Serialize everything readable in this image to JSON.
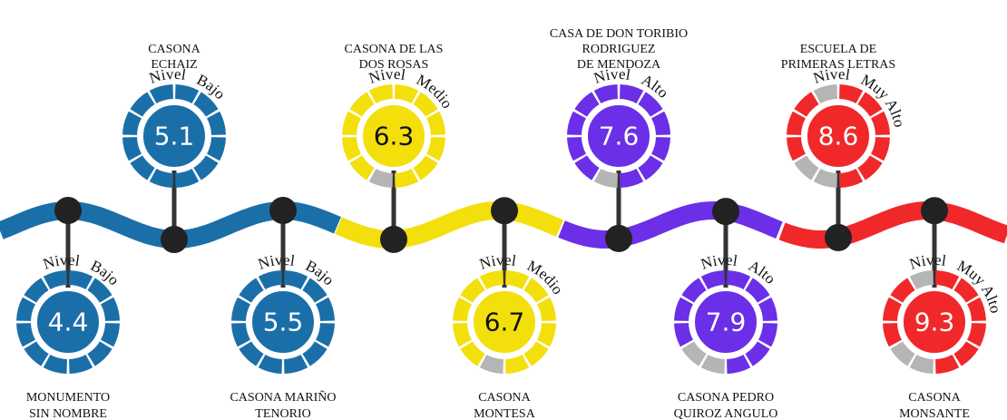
{
  "items": [
    {
      "name": [
        "MONUMENTO",
        "SIN NOMBRE"
      ],
      "score": "4.4",
      "level": [
        "Nivel",
        "Bajo"
      ],
      "color": "#1b6fa9"
    },
    {
      "name": [
        "CASONA",
        "ECHAIZ"
      ],
      "score": "5.1",
      "level": [
        "Nivel",
        "Bajo"
      ],
      "color": "#1b6fa9"
    },
    {
      "name": [
        "CASONA MARIÑO",
        "TENORIO"
      ],
      "score": "5.5",
      "level": [
        "Nivel",
        "Bajo"
      ],
      "color": "#1b6fa9"
    },
    {
      "name": [
        "CASONA DE LAS",
        "DOS ROSAS"
      ],
      "score": "6.3",
      "level": [
        "Nivel",
        "Medio"
      ],
      "color": "#f3df0c"
    },
    {
      "name": [
        "CASONA",
        "MONTESA"
      ],
      "score": "6.7",
      "level": [
        "Nivel",
        "Medio"
      ],
      "color": "#f3df0c"
    },
    {
      "name": [
        "CASA DE DON TORIBIO",
        "RODRIGUEZ",
        "DE MENDOZA"
      ],
      "score": "7.6",
      "level": [
        "Nivel",
        "Alto"
      ],
      "color": "#6a2fe6"
    },
    {
      "name": [
        "CASONA PEDRO",
        "QUIROZ ANGULO"
      ],
      "score": "7.9",
      "level": [
        "Nivel",
        "Alto"
      ],
      "color": "#6a2fe6"
    },
    {
      "name": [
        "ESCUELA DE",
        "PRIMERAS LETRAS"
      ],
      "score": "8.6",
      "level": [
        "Nivel",
        "Muy Alto"
      ],
      "color": "#f0282a"
    },
    {
      "name": [
        "CASONA",
        "MONSANTE"
      ],
      "score": "9.3",
      "level": [
        "Nivel",
        "Muy Alto"
      ],
      "color": "#f0282a"
    }
  ]
}
